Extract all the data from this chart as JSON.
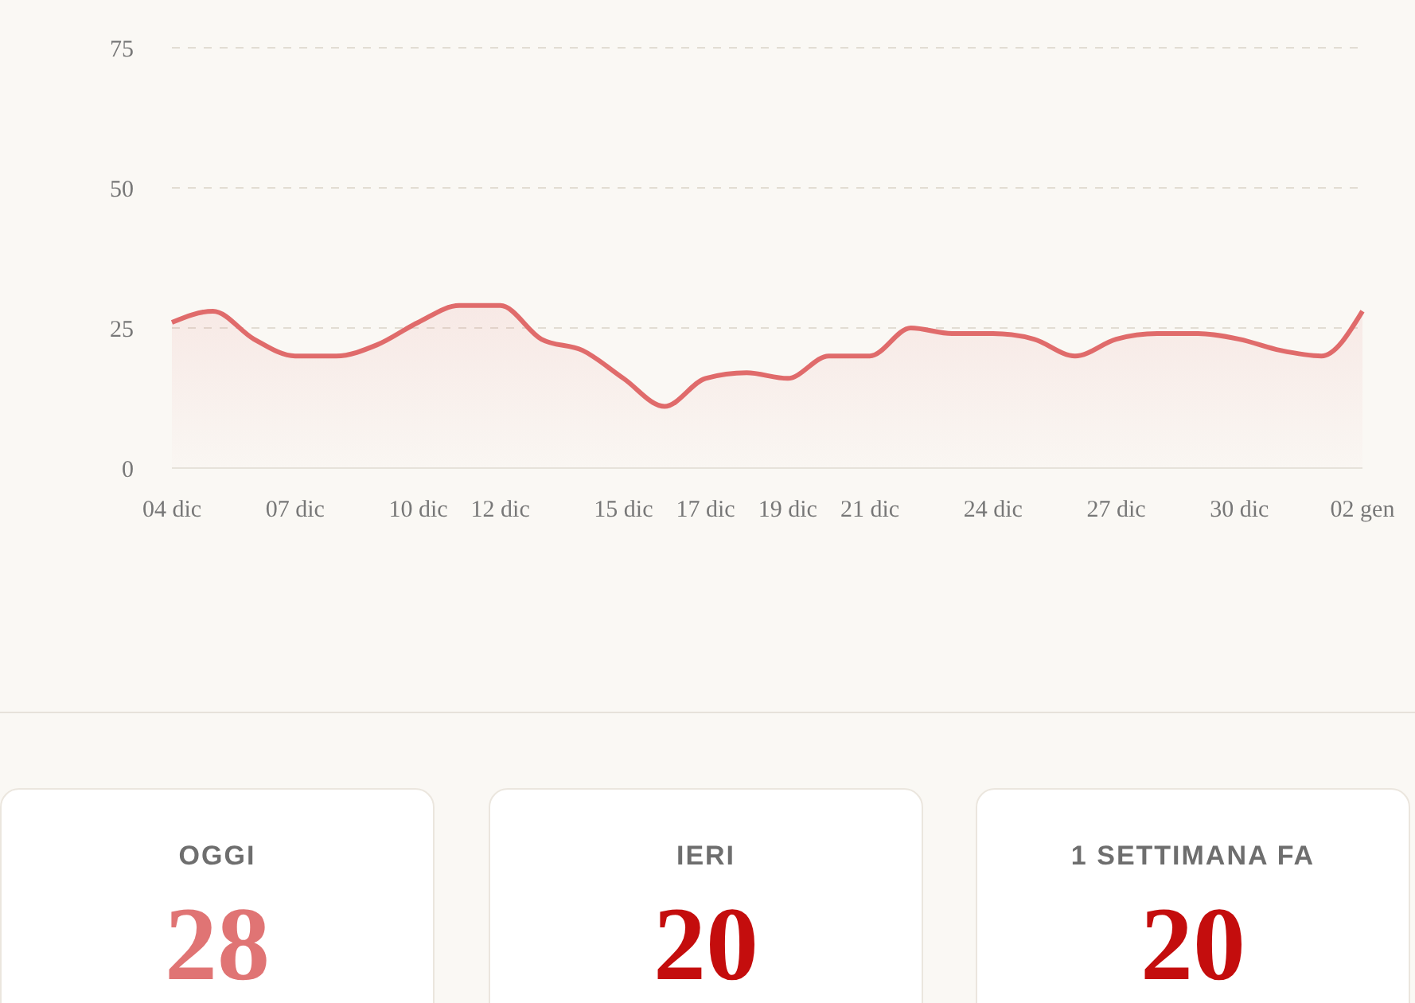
{
  "chart_data": [
    {
      "type": "area",
      "categories": [
        "04 dic",
        null,
        null,
        "07 dic",
        null,
        null,
        "10 dic",
        null,
        "12 dic",
        null,
        null,
        "15 dic",
        null,
        "17 dic",
        null,
        "19 dic",
        null,
        "21 dic",
        null,
        null,
        "24 dic",
        null,
        null,
        "27 dic",
        null,
        null,
        "30 dic",
        null,
        null,
        "02 gen"
      ],
      "series": [
        {
          "color": "#e06b6b",
          "values": [
            26,
            28,
            23,
            20,
            20,
            22,
            26,
            29,
            29,
            23,
            21,
            16,
            11,
            16,
            17,
            16,
            20,
            20,
            25,
            24,
            24,
            23,
            20,
            23,
            24,
            24,
            23,
            21,
            20,
            28
          ]
        }
      ],
      "ylim": [
        0,
        75
      ],
      "yticks": [
        0,
        25,
        50,
        75
      ],
      "grid": "y",
      "legend": false,
      "marker": "none",
      "line_style": "solid"
    },
    {
      "type": "other",
      "categories": [
        "OGGI",
        "IERI",
        "1 SETTIMANA FA"
      ],
      "values": [
        28,
        20,
        20
      ],
      "data_labels": true
    }
  ]
}
